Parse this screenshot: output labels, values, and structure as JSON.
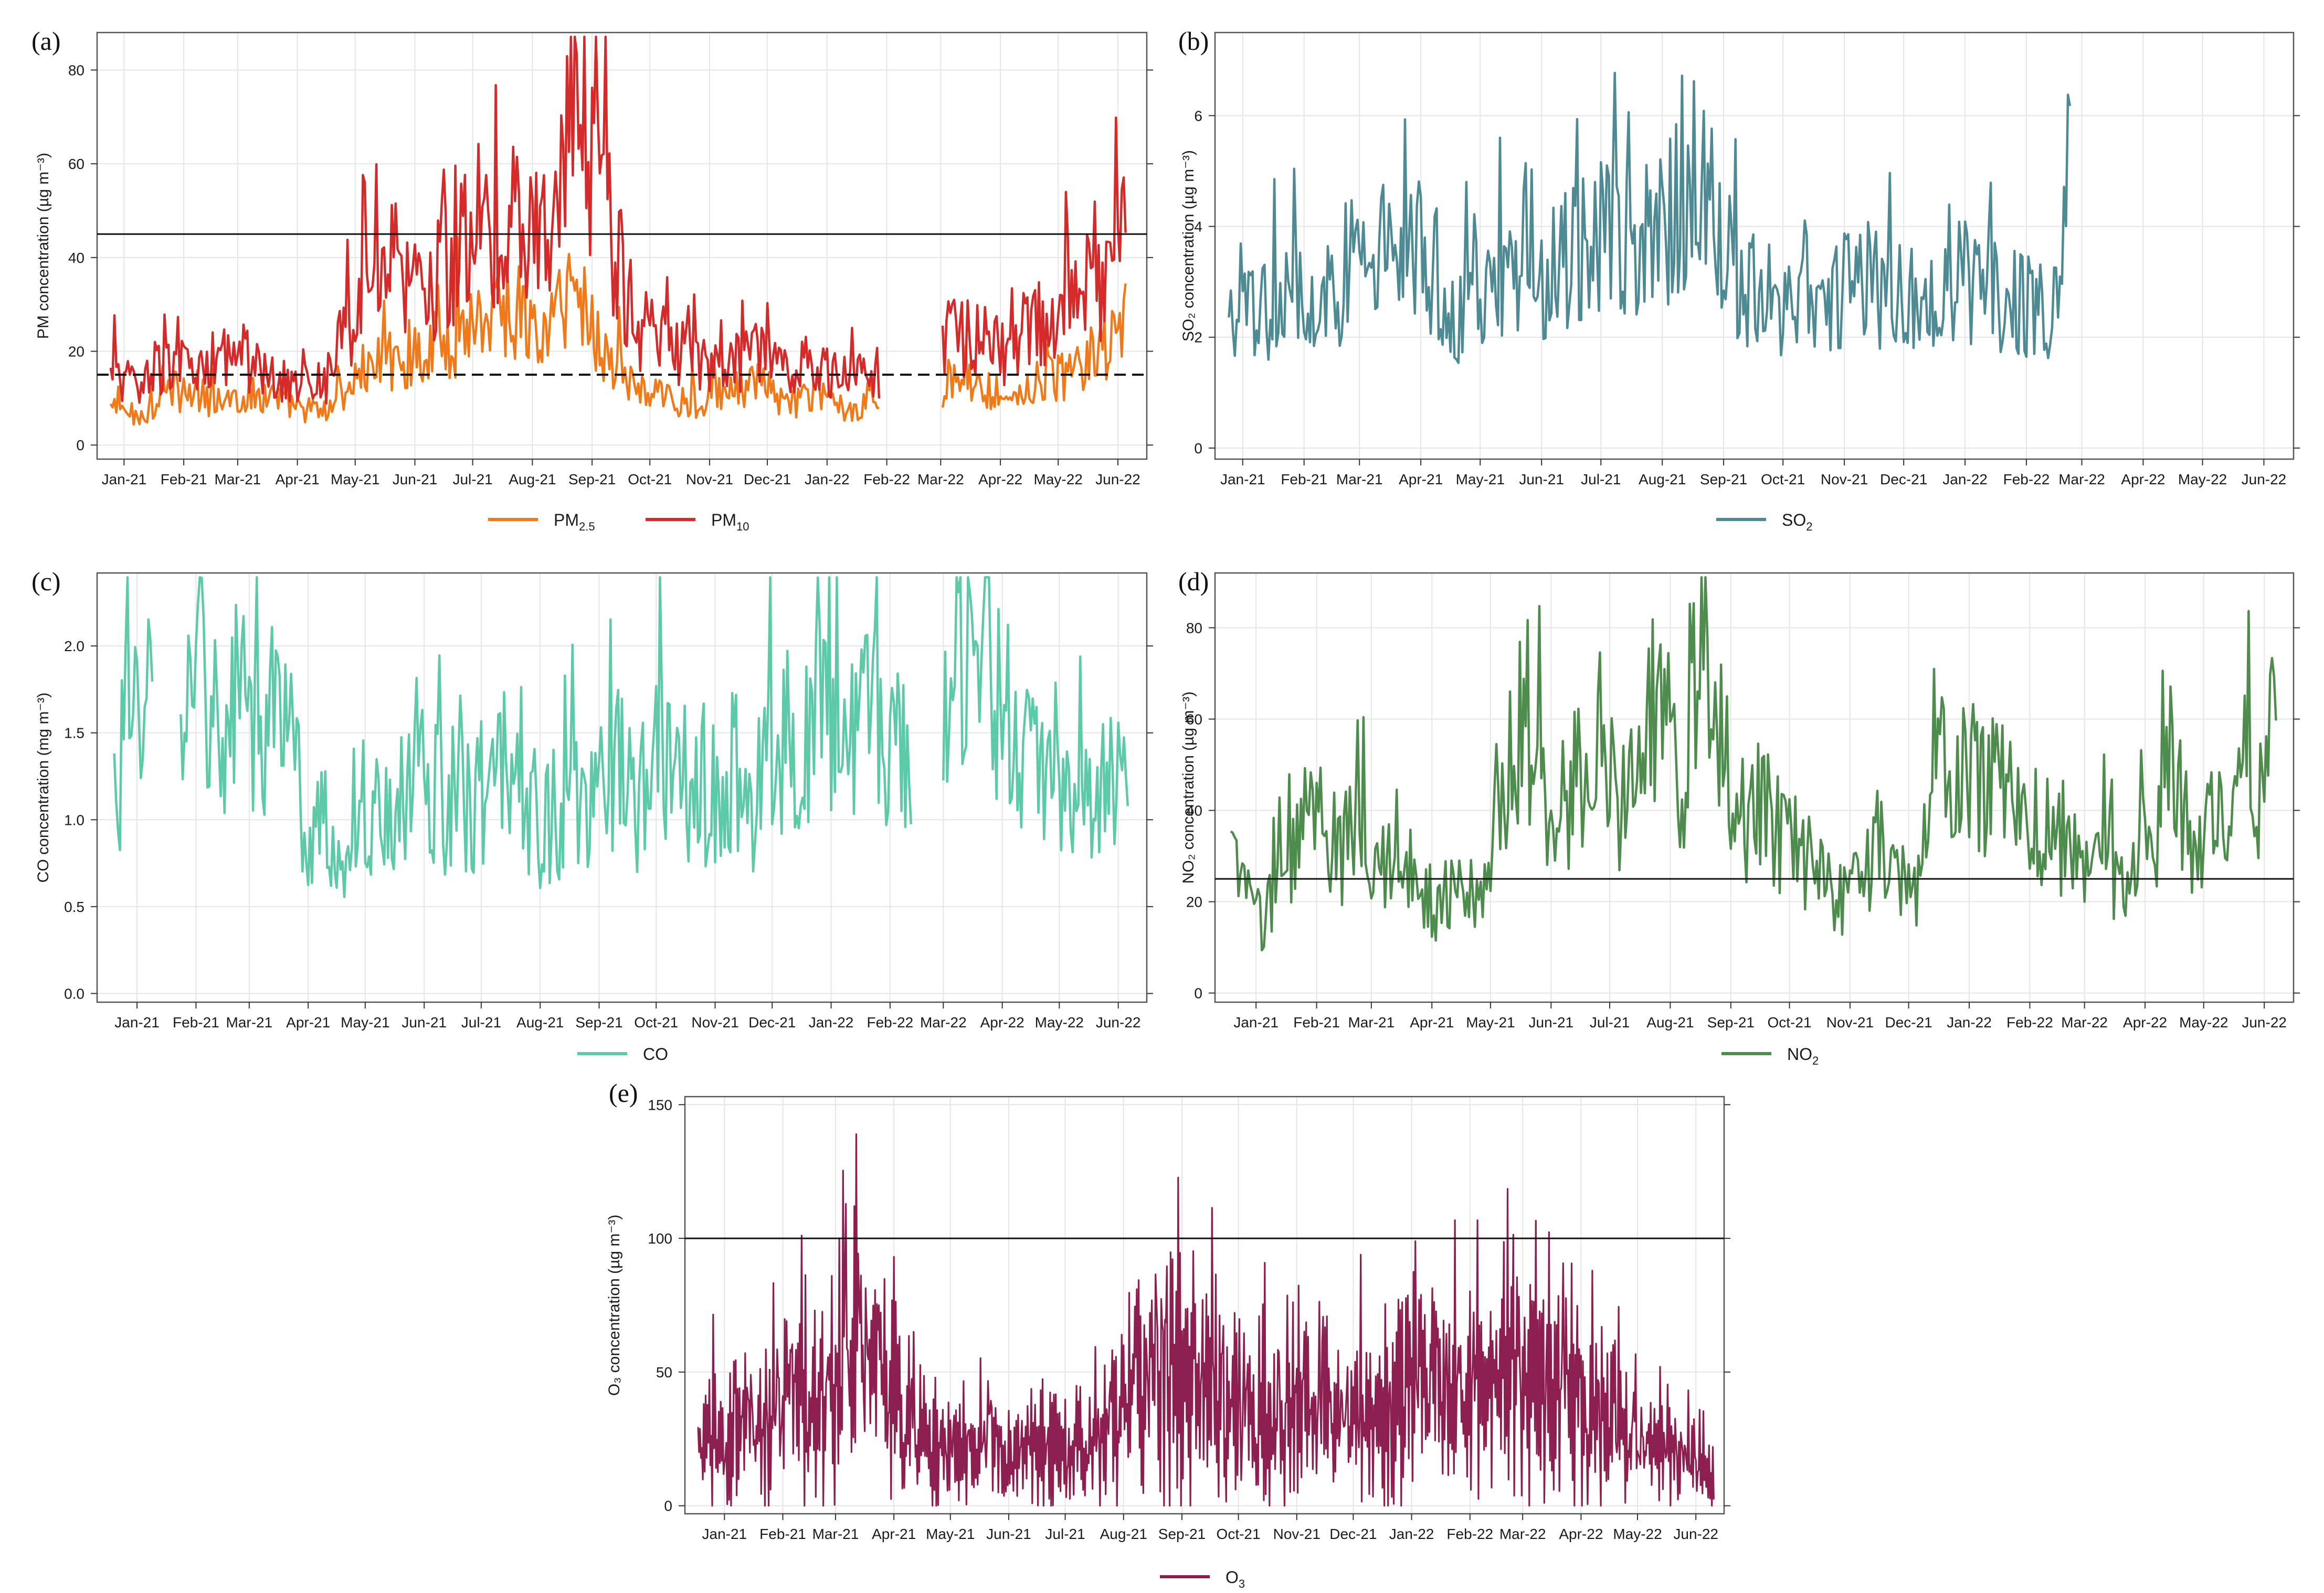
{
  "chart_data": [
    {
      "panel": "(a)",
      "type": "line",
      "ylabel": "PM concentration (µg m⁻³)",
      "yticks": [
        0,
        20,
        40,
        60,
        80
      ],
      "ylim": [
        -3,
        88
      ],
      "x": [
        "2021-01-08",
        "2021-01-24",
        "2021-02-09",
        "2021-02-25",
        "2021-03-13",
        "2021-03-29",
        "2021-04-14",
        "2021-04-30",
        "2021-05-16",
        "2021-06-01",
        "2021-06-17",
        "2021-07-03",
        "2021-07-19",
        "2021-08-04",
        "2021-08-20",
        "2021-09-05",
        "2021-09-21",
        "2021-10-07",
        "2021-10-23",
        "2021-11-08",
        "2021-11-24",
        "2021-12-10",
        "2021-12-26",
        "2022-01-11",
        "2022-01-27",
        "2022-02-12",
        "2022-02-28",
        "2022-03-16",
        "2022-04-01",
        "2022-04-17",
        "2022-05-03",
        "2022-05-19",
        "2022-06-04",
        "2022-06-20"
      ],
      "xlim": [
        "2021-01-01",
        "2022-06-30"
      ],
      "xticks": [
        "Jan-21",
        "Feb-21",
        "Mar-21",
        "Apr-21",
        "May-21",
        "Jun-21",
        "Jul-21",
        "Aug-21",
        "Sep-21",
        "Oct-21",
        "Nov-21",
        "Dec-21",
        "Jan-22",
        "Feb-22",
        "Mar-22",
        "Apr-22",
        "May-22",
        "Jun-22"
      ],
      "xtick_dates": [
        "2021-01-15",
        "2021-02-15",
        "2021-03-15",
        "2021-04-15",
        "2021-05-15",
        "2021-06-15",
        "2021-07-15",
        "2021-08-15",
        "2021-09-15",
        "2021-10-15",
        "2021-11-15",
        "2021-12-15",
        "2022-01-15",
        "2022-02-15",
        "2022-03-15",
        "2022-04-15",
        "2022-05-15",
        "2022-06-15"
      ],
      "hlines": [
        {
          "y": 45,
          "style": "solid"
        },
        {
          "y": 15,
          "style": "dashed"
        }
      ],
      "series": [
        {
          "name": "PM2.5",
          "color": "#f07a1a",
          "values": [
            8,
            6,
            12,
            9,
            10,
            11,
            8,
            7,
            15,
            18,
            20,
            22,
            28,
            30,
            22,
            35,
            20,
            12,
            10,
            9,
            11,
            13,
            9,
            10,
            8,
            9,
            null,
            12,
            14,
            10,
            13,
            15,
            18,
            26
          ]
        },
        {
          "name": "PM10",
          "color": "#d42a2a",
          "values": [
            15,
            12,
            18,
            14,
            20,
            16,
            12,
            14,
            30,
            40,
            32,
            38,
            46,
            48,
            42,
            82,
            52,
            26,
            22,
            18,
            16,
            20,
            15,
            16,
            14,
            16,
            null,
            22,
            24,
            20,
            26,
            30,
            34,
            45
          ]
        }
      ],
      "legend": [
        {
          "label": "PM",
          "sub": "2.5"
        },
        {
          "label": "PM",
          "sub": "10"
        }
      ]
    },
    {
      "panel": "(b)",
      "type": "line",
      "ylabel": "SO₂ concentration (µg m⁻³)",
      "yticks": [
        0,
        2,
        4,
        6
      ],
      "ylim": [
        -0.2,
        7.5
      ],
      "x": [
        "2021-01-08",
        "2021-01-24",
        "2021-02-09",
        "2021-02-25",
        "2021-03-13",
        "2021-03-29",
        "2021-04-14",
        "2021-04-30",
        "2021-05-16",
        "2021-06-01",
        "2021-06-17",
        "2021-07-03",
        "2021-07-19",
        "2021-08-04",
        "2021-08-20",
        "2021-09-05",
        "2021-09-21",
        "2021-10-07",
        "2021-10-23",
        "2021-11-08",
        "2021-11-24",
        "2021-12-10",
        "2021-12-26",
        "2022-01-11",
        "2022-01-27",
        "2022-02-12",
        "2022-02-28",
        "2022-03-10"
      ],
      "xlim": [
        "2021-01-01",
        "2022-06-30"
      ],
      "xticks": [
        "Jan-21",
        "Feb-21",
        "Mar-21",
        "Apr-21",
        "May-21",
        "Jun-21",
        "Jul-21",
        "Aug-21",
        "Sep-21",
        "Oct-21",
        "Nov-21",
        "Dec-21",
        "Jan-22",
        "Feb-22",
        "Mar-22",
        "Apr-22",
        "May-22",
        "Jun-22"
      ],
      "xtick_dates": [
        "2021-01-15",
        "2021-02-15",
        "2021-03-15",
        "2021-04-15",
        "2021-05-15",
        "2021-06-15",
        "2021-07-15",
        "2021-08-15",
        "2021-09-15",
        "2021-10-15",
        "2021-11-15",
        "2021-12-15",
        "2022-01-15",
        "2022-02-15",
        "2022-03-15",
        "2022-04-15",
        "2022-05-15",
        "2022-06-15"
      ],
      "series": [
        {
          "name": "SO2",
          "color": "#4d8a94",
          "values": [
            2.1,
            2.5,
            2.7,
            2.6,
            3.2,
            3.5,
            3.4,
            2.3,
            2.8,
            3.1,
            3.0,
            3.6,
            3.8,
            3.4,
            4.2,
            5.2,
            3.0,
            2.7,
            2.4,
            2.8,
            3.1,
            2.6,
            2.9,
            3.0,
            2.9,
            2.6,
            2.5,
            4.9
          ]
        }
      ],
      "legend": [
        {
          "label": "SO",
          "sub": "2"
        }
      ]
    },
    {
      "panel": "(c)",
      "type": "line",
      "ylabel": "CO concentration (mg m⁻³)",
      "yticks": [
        0.0,
        0.5,
        1.0,
        1.5,
        2.0
      ],
      "ylim": [
        -0.05,
        2.42
      ],
      "x": [
        "2021-01-03",
        "2021-01-10",
        "2021-01-17",
        "2021-01-24",
        "2021-01-31",
        "2021-02-07",
        "2021-02-14",
        "2021-02-21",
        "2021-03-01",
        "2021-03-10",
        "2021-03-19",
        "2021-03-28",
        "2021-04-06",
        "2021-04-15",
        "2021-04-24",
        "2021-05-03",
        "2021-05-15",
        "2021-05-27",
        "2021-06-08",
        "2021-06-20",
        "2021-07-02",
        "2021-07-14",
        "2021-07-26",
        "2021-08-07",
        "2021-08-19",
        "2021-08-31",
        "2021-09-12",
        "2021-09-24",
        "2021-10-06",
        "2021-10-18",
        "2021-10-30",
        "2021-11-11",
        "2021-11-23",
        "2021-12-05",
        "2021-12-17",
        "2021-12-29",
        "2022-01-10",
        "2022-01-22",
        "2022-02-03",
        "2022-02-15",
        "2022-02-27",
        "2022-03-06",
        "2022-03-15",
        "2022-03-25",
        "2022-04-05",
        "2022-04-16",
        "2022-04-27",
        "2022-05-08",
        "2022-05-19",
        "2022-05-30",
        "2022-06-10",
        "2022-06-21"
      ],
      "xlim": [
        "2020-12-25",
        "2022-06-30"
      ],
      "xticks": [
        "Jan-21",
        "Feb-21",
        "Mar-21",
        "Apr-21",
        "May-21",
        "Jun-21",
        "Jul-21",
        "Aug-21",
        "Sep-21",
        "Oct-21",
        "Nov-21",
        "Dec-21",
        "Jan-22",
        "Feb-22",
        "Mar-22",
        "Apr-22",
        "May-22",
        "Jun-22"
      ],
      "xtick_dates": [
        "2021-01-15",
        "2021-02-15",
        "2021-03-15",
        "2021-04-15",
        "2021-05-15",
        "2021-06-15",
        "2021-07-15",
        "2021-08-15",
        "2021-09-15",
        "2021-10-15",
        "2021-11-15",
        "2021-12-15",
        "2022-01-15",
        "2022-02-15",
        "2022-03-15",
        "2022-04-15",
        "2022-05-15",
        "2022-06-15"
      ],
      "series": [
        {
          "name": "CO",
          "color": "#5cc9a7",
          "values": [
            1.2,
            1.5,
            1.6,
            2.2,
            null,
            1.8,
            1.6,
            1.9,
            1.4,
            1.7,
            1.5,
            1.6,
            1.4,
            0.9,
            1.0,
            0.8,
            1.1,
            0.9,
            1.3,
            1.2,
            1.0,
            1.1,
            1.2,
            0.9,
            1.0,
            1.1,
            1.2,
            1.3,
            1.1,
            1.4,
            1.2,
            1.1,
            1.3,
            1.1,
            1.5,
            1.3,
            1.6,
            1.5,
            1.6,
            1.4,
            1.5,
            null,
            1.8,
            2.1,
            1.9,
            1.6,
            1.4,
            1.3,
            1.2,
            1.1,
            1.3,
            1.4
          ]
        }
      ],
      "legend": [
        {
          "label": "CO",
          "sub": ""
        }
      ]
    },
    {
      "panel": "(d)",
      "type": "line",
      "ylabel": "NO₂ concentration (µg m⁻³)",
      "yticks": [
        0,
        20,
        40,
        60,
        80
      ],
      "ylim": [
        -2,
        92
      ],
      "x": [
        "2021-01-02",
        "2021-01-10",
        "2021-01-18",
        "2021-01-26",
        "2021-02-03",
        "2021-02-11",
        "2021-02-19",
        "2021-02-27",
        "2021-03-07",
        "2021-03-15",
        "2021-03-23",
        "2021-03-31",
        "2021-04-08",
        "2021-04-16",
        "2021-04-24",
        "2021-05-02",
        "2021-05-10",
        "2021-05-18",
        "2021-05-26",
        "2021-06-03",
        "2021-06-11",
        "2021-06-19",
        "2021-06-27",
        "2021-07-05",
        "2021-07-13",
        "2021-07-21",
        "2021-07-29",
        "2021-08-06",
        "2021-08-14",
        "2021-08-22",
        "2021-08-30",
        "2021-09-07",
        "2021-09-15",
        "2021-09-23",
        "2021-10-01",
        "2021-10-09",
        "2021-10-17",
        "2021-10-25",
        "2021-11-02",
        "2021-11-10",
        "2021-11-18",
        "2021-11-26",
        "2021-12-04",
        "2021-12-12",
        "2021-12-20",
        "2021-12-28",
        "2022-03-10",
        "2022-03-18",
        "2022-03-26",
        "2022-04-03",
        "2022-04-11",
        "2022-04-19",
        "2022-04-27",
        "2022-05-05",
        "2022-05-13",
        "2022-05-21",
        "2022-05-29",
        "2022-06-06",
        "2022-06-14",
        "2022-06-22"
      ],
      "xlim": [
        "2020-12-25",
        "2022-06-30"
      ],
      "xticks": [
        "Jan-21",
        "Feb-21",
        "Mar-21",
        "Apr-21",
        "May-21",
        "Jun-21",
        "Jul-21",
        "Aug-21",
        "Sep-21",
        "Oct-21",
        "Nov-21",
        "Dec-21",
        "Jan-22",
        "Feb-22",
        "Mar-22",
        "Apr-22",
        "May-22",
        "Jun-22"
      ],
      "xtick_dates": [
        "2021-01-15",
        "2021-02-15",
        "2021-03-15",
        "2021-04-15",
        "2021-05-15",
        "2021-06-15",
        "2021-07-15",
        "2021-08-15",
        "2021-09-15",
        "2021-10-15",
        "2021-11-15",
        "2021-12-15",
        "2022-01-15",
        "2022-02-15",
        "2022-03-15",
        "2022-04-15",
        "2022-05-15",
        "2022-06-15"
      ],
      "hlines": [
        {
          "y": 25,
          "style": "solid"
        }
      ],
      "series": [
        {
          "name": "NO2",
          "color": "#4e8c4e",
          "values": [
            30,
            22,
            15,
            25,
            30,
            42,
            35,
            30,
            38,
            32,
            28,
            30,
            24,
            18,
            22,
            26,
            20,
            34,
            55,
            62,
            40,
            30,
            45,
            55,
            60,
            40,
            50,
            62,
            55,
            45,
            82,
            50,
            40,
            38,
            42,
            35,
            30,
            28,
            25,
            20,
            24,
            28,
            30,
            26,
            22,
            55,
            32,
            25,
            28,
            22,
            30,
            35,
            45,
            40,
            30,
            38,
            42,
            48,
            40,
            62
          ]
        }
      ],
      "legend": [
        {
          "label": "NO",
          "sub": "2"
        }
      ]
    },
    {
      "panel": "(e)",
      "type": "line",
      "ylabel": "O₃ concentration (µg m⁻³)",
      "yticks": [
        0,
        50,
        100,
        150
      ],
      "ylim": [
        -3,
        153
      ],
      "x": [
        "2021-01-01",
        "2021-01-11",
        "2021-01-21",
        "2021-01-31",
        "2021-02-10",
        "2021-02-20",
        "2021-03-02",
        "2021-03-12",
        "2021-03-22",
        "2021-04-01",
        "2021-04-11",
        "2021-04-21",
        "2021-05-01",
        "2021-05-11",
        "2021-05-21",
        "2021-05-31",
        "2021-06-10",
        "2021-06-20",
        "2021-06-30",
        "2021-07-10",
        "2021-07-20",
        "2021-07-30",
        "2021-08-09",
        "2021-08-19",
        "2021-08-29",
        "2021-09-08",
        "2021-09-18",
        "2021-09-28",
        "2021-10-08",
        "2021-10-18",
        "2021-10-28",
        "2021-11-07",
        "2021-11-17",
        "2021-11-27",
        "2021-12-07",
        "2021-12-17",
        "2021-12-27",
        "2022-01-06",
        "2022-01-16",
        "2022-01-26",
        "2022-02-05",
        "2022-02-15",
        "2022-02-25",
        "2022-03-07",
        "2022-03-17",
        "2022-03-27",
        "2022-04-06",
        "2022-04-16",
        "2022-04-26",
        "2022-05-06",
        "2022-05-16",
        "2022-05-26",
        "2022-06-05",
        "2022-06-15",
        "2022-06-25"
      ],
      "xlim": [
        "2020-12-25",
        "2022-06-30"
      ],
      "xticks": [
        "Jan-21",
        "Feb-21",
        "Mar-21",
        "Apr-21",
        "May-21",
        "Jun-21",
        "Jul-21",
        "Aug-21",
        "Sep-21",
        "Oct-21",
        "Nov-21",
        "Dec-21",
        "Jan-22",
        "Feb-22",
        "Mar-22",
        "Apr-22",
        "May-22",
        "Jun-22"
      ],
      "xtick_dates": [
        "2021-01-15",
        "2021-02-15",
        "2021-03-15",
        "2021-04-15",
        "2021-05-15",
        "2021-06-15",
        "2021-07-15",
        "2021-08-15",
        "2021-09-15",
        "2021-10-15",
        "2021-11-15",
        "2021-12-15",
        "2022-01-15",
        "2022-02-15",
        "2022-03-15",
        "2022-04-15",
        "2022-05-15",
        "2022-06-15"
      ],
      "hlines": [
        {
          "y": 100,
          "style": "solid"
        }
      ],
      "series": [
        {
          "name": "O3",
          "color": "#8c1f50",
          "values": [
            40,
            45,
            50,
            55,
            60,
            70,
            75,
            85,
            95,
            100,
            80,
            60,
            45,
            40,
            35,
            38,
            42,
            40,
            35,
            38,
            40,
            45,
            55,
            75,
            95,
            100,
            90,
            80,
            70,
            65,
            60,
            55,
            70,
            65,
            55,
            60,
            55,
            70,
            90,
            95,
            75,
            70,
            85,
            100,
            95,
            85,
            80,
            70,
            60,
            50,
            45,
            40,
            35,
            30,
            25
          ]
        }
      ],
      "legend": [
        {
          "label": "O",
          "sub": "3"
        }
      ]
    }
  ]
}
